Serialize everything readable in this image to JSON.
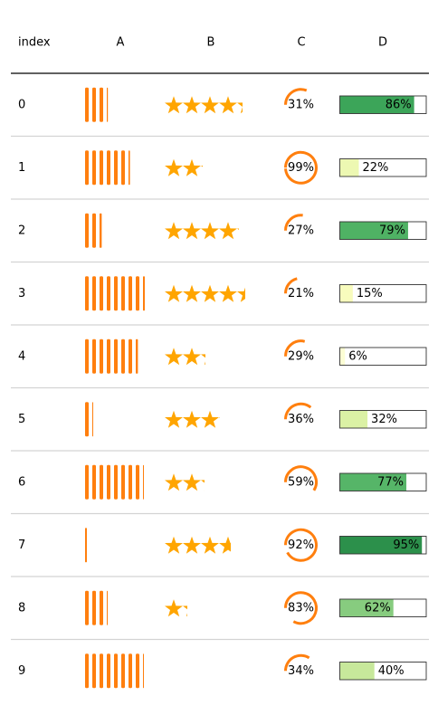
{
  "chart_data": {
    "type": "table",
    "columns": [
      "index",
      "A",
      "B",
      "C",
      "D"
    ],
    "rows": [
      {
        "index": "0",
        "A": 3.3,
        "B": 4.3,
        "C": 0.31,
        "D": 0.86
      },
      {
        "index": "1",
        "A": 6.4,
        "B": 2.1,
        "C": 0.99,
        "D": 0.22
      },
      {
        "index": "2",
        "A": 2.6,
        "B": 4.1,
        "C": 0.27,
        "D": 0.79
      },
      {
        "index": "3",
        "A": 8.5,
        "B": 4.45,
        "C": 0.21,
        "D": 0.15
      },
      {
        "index": "4",
        "A": 7.6,
        "B": 2.25,
        "C": 0.29,
        "D": 0.06
      },
      {
        "index": "5",
        "A": 1.1,
        "B": 3.05,
        "C": 0.36,
        "D": 0.32
      },
      {
        "index": "6",
        "A": 8.1,
        "B": 2.2,
        "C": 0.59,
        "D": 0.77
      },
      {
        "index": "7",
        "A": 0.5,
        "B": 3.65,
        "C": 0.92,
        "D": 0.95
      },
      {
        "index": "8",
        "A": 3.2,
        "B": 1.25,
        "C": 0.83,
        "D": 0.62
      },
      {
        "index": "9",
        "A": 8.1,
        "B": 0.0,
        "C": 0.34,
        "D": 0.4
      }
    ],
    "formatted": {
      "C": [
        "31%",
        "99%",
        "27%",
        "21%",
        "29%",
        "36%",
        "59%",
        "92%",
        "83%",
        "34%"
      ],
      "D": [
        "86%",
        "22%",
        "79%",
        "15%",
        "6%",
        "32%",
        "77%",
        "95%",
        "62%",
        "40%"
      ]
    },
    "colors": {
      "bars_A": "#ff7f0e",
      "stars_B": "#ffa500",
      "ring_C": "#ff7f0e",
      "header_rule": "#000000",
      "row_rule": "#d3d3d3",
      "bar_D_colormap": [
        "#ffffe5",
        "#f7fcb9",
        "#d9f0a3",
        "#addd8e",
        "#78c679",
        "#41ab5d",
        "#238443"
      ]
    },
    "grid": false,
    "legend": "none"
  }
}
